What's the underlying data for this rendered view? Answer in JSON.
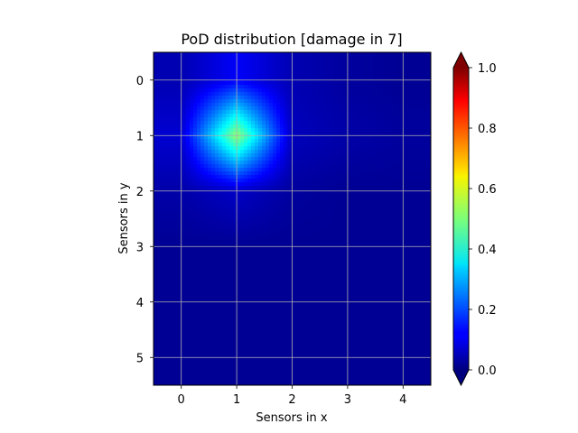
{
  "chart_data": {
    "type": "heatmap",
    "title": "PoD distribution [damage in 7]",
    "xlabel": "Sensors in x",
    "ylabel": "Sensors in y",
    "x_ticks": [
      "0",
      "1",
      "2",
      "3",
      "4"
    ],
    "y_ticks": [
      "0",
      "1",
      "2",
      "3",
      "4",
      "5"
    ],
    "xlim": [
      -0.5,
      4.5
    ],
    "ylim": [
      5.5,
      -0.5
    ],
    "grid": true,
    "colormap": "jet",
    "color_range": [
      0.0,
      1.0
    ],
    "colorbar": {
      "ticks": [
        "0.0",
        "0.2",
        "0.4",
        "0.6",
        "0.8",
        "1.0"
      ],
      "extend": "both"
    },
    "values": [
      [
        0.05,
        0.12,
        0.05,
        0.03,
        0.02
      ],
      [
        0.08,
        0.52,
        0.06,
        0.04,
        0.03
      ],
      [
        0.04,
        0.07,
        0.03,
        0.02,
        0.02
      ],
      [
        0.02,
        0.02,
        0.02,
        0.02,
        0.02
      ],
      [
        0.02,
        0.02,
        0.02,
        0.02,
        0.02
      ],
      [
        0.02,
        0.02,
        0.02,
        0.02,
        0.02
      ]
    ]
  }
}
